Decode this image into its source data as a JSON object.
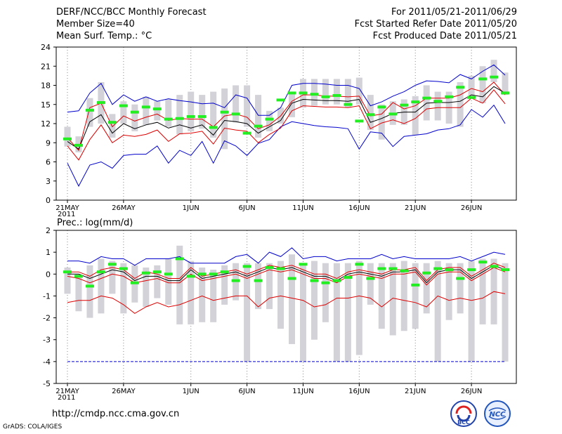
{
  "header": {
    "title": "DERF/NCC/BCC Monthly Forecast",
    "member_size": "Member Size=40",
    "variable": "Mean Surf. Temp.: °C",
    "period": "For 2011/05/21-2011/06/29",
    "fcst_started": "Fcst Started Refer Date 2011/05/20",
    "fcst_produced": "Fcst Produced Date 2011/05/21"
  },
  "footer": {
    "url": "http://cmdp.ncc.cma.gov.cn",
    "grads": "GrADS: COLA/IGES",
    "logo_bcc": "BCC",
    "logo_ncc": "NCC"
  },
  "colors": {
    "spread": "#d2d2d8",
    "envelope": "#0000cc",
    "ci": "#dd0000",
    "mean": "#000000",
    "median": "#22ee22",
    "grid": "#888888"
  },
  "chart_data": [
    {
      "type": "line",
      "title": "Mean Surf. Temp.: °C",
      "ylim": [
        0,
        24
      ],
      "yticks": [
        "0",
        "3",
        "6",
        "9",
        "12",
        "15",
        "18",
        "21",
        "24"
      ],
      "xticks": [
        "21MAY\n2011",
        "26MAY",
        "1JUN",
        "6JUN",
        "11JUN",
        "16JUN",
        "21JUN",
        "26JUN"
      ],
      "xtick_index": [
        0,
        5,
        11,
        16,
        21,
        26,
        31,
        36
      ],
      "days": 40,
      "box_low": [
        8.4,
        7.5,
        11.5,
        12,
        9.8,
        12,
        10.8,
        11.8,
        12.5,
        11.5,
        10.3,
        10.8,
        11.2,
        9.8,
        8,
        12.2,
        11.5,
        9.8,
        10.8,
        12,
        13,
        14.5,
        14.8,
        15,
        15,
        14.5,
        15,
        11,
        9.5,
        11.8,
        11.8,
        10.2,
        12.5,
        12.5,
        12,
        11.5,
        16,
        15.2,
        18.5,
        16.5
      ],
      "box_high": [
        11.5,
        10,
        16,
        18.5,
        13.5,
        15.5,
        15,
        16.2,
        15.5,
        15.8,
        16.5,
        17,
        16.5,
        17,
        17.5,
        18,
        18,
        16.5,
        14,
        14.5,
        17,
        19,
        19,
        19,
        19,
        19,
        19.2,
        16.5,
        15,
        15.5,
        15.8,
        16.3,
        18,
        17,
        17,
        18.5,
        19.5,
        21,
        22,
        20
      ],
      "envelope_max": [
        13.8,
        14,
        16.8,
        18.3,
        15,
        16.5,
        15.5,
        16.2,
        15.5,
        15.9,
        15.6,
        15.4,
        15.1,
        15.2,
        14.5,
        16.5,
        16,
        13.3,
        13.3,
        14.5,
        18,
        18.3,
        18.3,
        18.2,
        18,
        18,
        17.5,
        14.8,
        15.4,
        16.3,
        17,
        18,
        18.7,
        18.6,
        18.4,
        19.7,
        19,
        20.2,
        21.2,
        19.6
      ],
      "envelope_min": [
        5.8,
        2.2,
        5.5,
        6,
        5,
        7,
        7.2,
        7.2,
        8.5,
        5.8,
        7.8,
        7,
        9.2,
        5.8,
        9.3,
        8.5,
        7,
        8.9,
        9.5,
        11.5,
        12.3,
        12,
        11.7,
        11.5,
        11.4,
        11.2,
        8,
        10.7,
        10.5,
        8.4,
        10,
        10.2,
        10.4,
        11,
        11.2,
        11.8,
        14.2,
        13,
        14.9,
        12
      ],
      "ci_upper": [
        9.8,
        7.8,
        14.5,
        15.2,
        11.5,
        13.2,
        12.4,
        13,
        13.5,
        12.5,
        12.8,
        12.7,
        12.7,
        11.5,
        13.2,
        13.5,
        13,
        11.2,
        11.8,
        13.2,
        15.5,
        16.5,
        16.5,
        16.3,
        16.3,
        16.2,
        16.3,
        13.2,
        13.5,
        15.3,
        14.3,
        14.8,
        16,
        16,
        16,
        16.5,
        17.5,
        17,
        18.5,
        16.5
      ],
      "mean": [
        9.2,
        8,
        12.3,
        13.4,
        10.5,
        12,
        11.2,
        11.8,
        12.2,
        11.3,
        11.8,
        11.3,
        11.8,
        10.2,
        12.5,
        12.3,
        12,
        10.5,
        11.5,
        12.5,
        15.2,
        15.8,
        15.7,
        15.6,
        15.6,
        15.5,
        15.8,
        12.2,
        12.8,
        13.6,
        13.8,
        13.8,
        15.2,
        15.3,
        15.3,
        15.5,
        16.5,
        16.2,
        17.8,
        16.8
      ],
      "ci_lower": [
        8.5,
        6.3,
        9.5,
        11.8,
        9,
        10.2,
        10,
        10.3,
        11,
        9.2,
        10.4,
        10.5,
        10.8,
        8.8,
        11.3,
        11,
        10.8,
        9,
        10.3,
        11.3,
        14,
        14.8,
        14.7,
        14.6,
        14.6,
        14.5,
        14.8,
        11.2,
        12.1,
        12.6,
        12,
        12.8,
        14.3,
        14.5,
        14.5,
        14.5,
        16,
        15.2,
        17.3,
        15.1
      ],
      "median": [
        9.6,
        8.6,
        14.1,
        15.3,
        12.2,
        14.8,
        13.8,
        14.6,
        14.3,
        12.7,
        12.8,
        13.1,
        13.1,
        11.4,
        13.8,
        13.5,
        10.5,
        11.6,
        12.7,
        15.7,
        16.8,
        16.8,
        16.6,
        16.2,
        16.4,
        15,
        12.4,
        13.4,
        14.6,
        13.5,
        14.9,
        15.4,
        16,
        15.5,
        16.2,
        17.7,
        16.1,
        19,
        19.3,
        16.8
      ]
    },
    {
      "type": "line",
      "title": "Prec.: log(mm/d)",
      "ylim": [
        -5,
        2
      ],
      "yticks": [
        "-5",
        "-4",
        "-3",
        "-2",
        "-1",
        "0",
        "1",
        "2"
      ],
      "xticks": [
        "21MAY\n2011",
        "26MAY",
        "1JUN",
        "6JUN",
        "11JUN",
        "16JUN",
        "21JUN",
        "26JUN"
      ],
      "xtick_index": [
        0,
        5,
        11,
        16,
        21,
        26,
        31,
        36
      ],
      "days": 40,
      "box_low": [
        -0.9,
        -1.7,
        -2,
        -1.8,
        -0.9,
        -1.8,
        -1.3,
        -1.5,
        -1.1,
        -1.4,
        -2.3,
        -2.3,
        -2.2,
        -2.2,
        -1.4,
        -1.2,
        -4,
        -1.6,
        -1.6,
        -2.5,
        -3.2,
        -4,
        -3,
        -2.2,
        -4,
        -4,
        -3.7,
        -1.4,
        -2.5,
        -2.8,
        -2.6,
        -2.5,
        -1.8,
        -4,
        -2.1,
        -1.8,
        -4,
        -2.3,
        -2.3,
        -4
      ],
      "box_high": [
        0.3,
        0,
        0.4,
        0.7,
        0.6,
        0.5,
        0.4,
        0.3,
        0.4,
        0.7,
        1.3,
        0.6,
        0.3,
        0.2,
        0.4,
        0.5,
        0.5,
        0.5,
        0.5,
        0.6,
        0.9,
        0.5,
        0.6,
        0.5,
        0.5,
        0.5,
        0.6,
        0.5,
        0.5,
        0.5,
        0.6,
        0.5,
        0.5,
        0.6,
        0.5,
        0.5,
        0.6,
        0.7,
        0.7,
        0.5
      ],
      "envelope_max": [
        0.6,
        0.6,
        0.5,
        0.8,
        0.7,
        0.7,
        0.4,
        0.7,
        0.7,
        0.7,
        0.8,
        0.5,
        0.5,
        0.5,
        0.5,
        0.8,
        0.9,
        0.5,
        1,
        0.8,
        1.2,
        0.7,
        0.8,
        0.8,
        0.6,
        0.7,
        0.7,
        0.7,
        0.9,
        0.7,
        0.8,
        0.7,
        0.7,
        0.7,
        0.7,
        0.8,
        0.6,
        0.8,
        1,
        0.9
      ],
      "mean": [
        0,
        0,
        -0.2,
        0,
        0.2,
        0.1,
        -0.3,
        -0.1,
        -0.1,
        -0.3,
        -0.3,
        0.2,
        -0.2,
        -0.1,
        0,
        0.1,
        -0.1,
        0.1,
        0.3,
        0.2,
        0.3,
        0.1,
        -0.1,
        -0.1,
        -0.3,
        0,
        0.1,
        0,
        -0.1,
        0.1,
        0.1,
        0.2,
        -0.4,
        0.1,
        0.2,
        0.2,
        -0.2,
        0.1,
        0.4,
        0.2
      ],
      "ci_upper": [
        0.1,
        0.1,
        -0.1,
        0.2,
        0.3,
        0.2,
        -0.2,
        0.1,
        0,
        -0.2,
        -0.2,
        0.3,
        -0.1,
        0,
        0.1,
        0.2,
        0,
        0.2,
        0.4,
        0.3,
        0.4,
        0.2,
        0,
        0,
        -0.2,
        0.1,
        0.2,
        0.1,
        0,
        0.2,
        0.2,
        0.3,
        -0.3,
        0.2,
        0.3,
        0.3,
        -0.1,
        0.2,
        0.5,
        0.3
      ],
      "ci_lower": [
        -0.1,
        -0.2,
        -0.4,
        -0.2,
        0,
        -0.1,
        -0.4,
        -0.3,
        -0.2,
        -0.4,
        -0.4,
        0,
        -0.3,
        -0.2,
        -0.1,
        0,
        -0.2,
        0,
        0.2,
        0.1,
        0.2,
        0,
        -0.2,
        -0.2,
        -0.4,
        -0.1,
        0,
        -0.1,
        -0.2,
        0,
        0,
        0.1,
        -0.5,
        0,
        0.1,
        0.1,
        -0.3,
        0,
        0.3,
        0.1
      ],
      "ci_low_band": [
        -1.3,
        -1.2,
        -1.2,
        -1,
        -1.1,
        -1.4,
        -1.8,
        -1.5,
        -1.3,
        -1.5,
        -1.4,
        -1.2,
        -1,
        -1.2,
        -1.1,
        -1,
        -1,
        -1.5,
        -1.1,
        -1,
        -1.1,
        -1.2,
        -1.5,
        -1.4,
        -1.1,
        -1.1,
        -1,
        -1.1,
        -1.5,
        -1.1,
        -1.2,
        -1.3,
        -1.5,
        -1,
        -1.2,
        -1.1,
        -1.2,
        -1.1,
        -0.8,
        -0.9
      ],
      "envelope_min_const": -4,
      "median": [
        0.1,
        -0.1,
        -0.55,
        0.1,
        0.45,
        0.25,
        -0.4,
        0.05,
        0.1,
        0,
        0.7,
        -0.1,
        0,
        0,
        0.1,
        -0.3,
        0.35,
        -0.3,
        0.3,
        0.25,
        -0.2,
        0.45,
        -0.3,
        -0.4,
        -0.3,
        -0.15,
        0.45,
        -0.2,
        0.25,
        0.25,
        0.15,
        -0.5,
        0.05,
        0.25,
        0.2,
        -0.2,
        0.2,
        0.55,
        0.35,
        0.2
      ]
    }
  ]
}
